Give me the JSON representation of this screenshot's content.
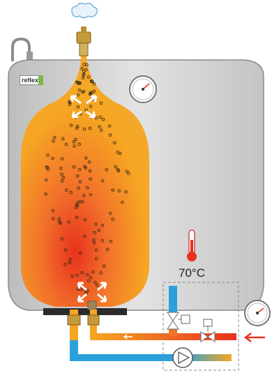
{
  "brand": {
    "logo_text": "reflex",
    "accent_color": "#7ab648"
  },
  "thermometer": {
    "temperature_label": "70°C"
  },
  "colors": {
    "vessel_shell": "#d9d9d9",
    "hot_water": "#f6a623",
    "hot_core": "#e8321e",
    "cold_pipe": "#2aa1dc",
    "return_arrow": "#e8321e"
  },
  "icons": {
    "vent_steam": "cloud-icon",
    "flow_direction": "arrow-left-icon",
    "pump": "circulation-pump-icon",
    "gauge": "pressure-gauge-icon",
    "valve": "valve-icon",
    "thermometer": "thermometer-icon"
  }
}
